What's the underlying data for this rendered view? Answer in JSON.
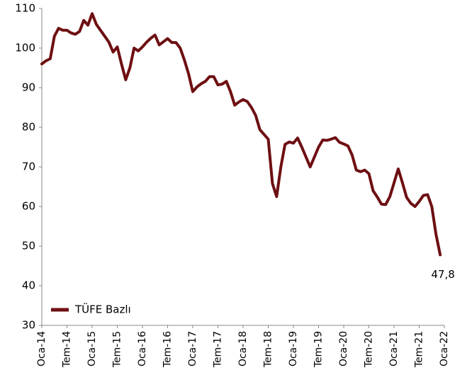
{
  "chart_data": {
    "type": "line",
    "categories": [
      "Oca-14",
      null,
      null,
      null,
      null,
      null,
      "Tem-14",
      null,
      null,
      null,
      null,
      null,
      "Oca-15",
      null,
      null,
      null,
      null,
      null,
      "Tem-15",
      null,
      null,
      null,
      null,
      null,
      "Oca-16",
      null,
      null,
      null,
      null,
      null,
      "Tem-16",
      null,
      null,
      null,
      null,
      null,
      "Oca-17",
      null,
      null,
      null,
      null,
      null,
      "Tem-17",
      null,
      null,
      null,
      null,
      null,
      "Oca-18",
      null,
      null,
      null,
      null,
      null,
      "Tem-18",
      null,
      null,
      null,
      null,
      null,
      "Oca-19",
      null,
      null,
      null,
      null,
      null,
      "Tem-19",
      null,
      null,
      null,
      null,
      null,
      "Oca-20",
      null,
      null,
      null,
      null,
      null,
      "Tem-20",
      null,
      null,
      null,
      null,
      null,
      "Oca-21",
      null,
      null,
      null,
      null,
      null,
      "Tem-21",
      null,
      null,
      null,
      null,
      null,
      "Oca-22"
    ],
    "series": [
      {
        "name": "TÜFE Bazlı",
        "color": "#6e0f12",
        "values": [
          96,
          96.8,
          97.3,
          103,
          105,
          104.5,
          104.5,
          103.8,
          103.5,
          104.2,
          107,
          105.8,
          108.7,
          106,
          104.5,
          103,
          101.5,
          99,
          100.3,
          96,
          92,
          95,
          100,
          99.3,
          100.3,
          101.5,
          102.5,
          103.3,
          100.8,
          101.6,
          102.4,
          101.4,
          101.4,
          100,
          97,
          93.5,
          89,
          90.2,
          91,
          91.6,
          92.8,
          92.8,
          90.7,
          90.9,
          91.6,
          89,
          85.6,
          86.4,
          87,
          86.5,
          85,
          83,
          79.4,
          78.2,
          77,
          65.8,
          62.5,
          70,
          75.7,
          76.3,
          76,
          77.3,
          75,
          72.5,
          70,
          72.5,
          75,
          76.8,
          76.7,
          77,
          77.4,
          76.2,
          75.8,
          75.3,
          73,
          69.2,
          68.8,
          69.2,
          68.3,
          64,
          62.4,
          60.6,
          60.5,
          62.5,
          66,
          69.5,
          66,
          62.3,
          60.8,
          60,
          61.3,
          62.8,
          63,
          60,
          53,
          47.8,
          null
        ],
        "value_labels": [
          null,
          null,
          null,
          null,
          null,
          null,
          null,
          null,
          null,
          null,
          null,
          null,
          null,
          null,
          null,
          null,
          null,
          null,
          null,
          null,
          null,
          null,
          null,
          null,
          null,
          null,
          null,
          null,
          null,
          null,
          null,
          null,
          null,
          null,
          null,
          null,
          null,
          null,
          null,
          null,
          null,
          null,
          null,
          null,
          null,
          null,
          null,
          null,
          null,
          null,
          null,
          null,
          null,
          null,
          null,
          null,
          null,
          null,
          null,
          null,
          null,
          null,
          null,
          null,
          null,
          null,
          null,
          null,
          null,
          null,
          null,
          null,
          null,
          null,
          null,
          null,
          null,
          null,
          null,
          null,
          null,
          null,
          null,
          null,
          null,
          null,
          null,
          null,
          null,
          null,
          null,
          null,
          null,
          null,
          null,
          "47,8",
          null
        ]
      }
    ],
    "ylim": [
      30,
      110
    ],
    "yticks": [
      30,
      40,
      50,
      60,
      70,
      80,
      90,
      100,
      110
    ],
    "grid": false,
    "legend": "lower left"
  }
}
